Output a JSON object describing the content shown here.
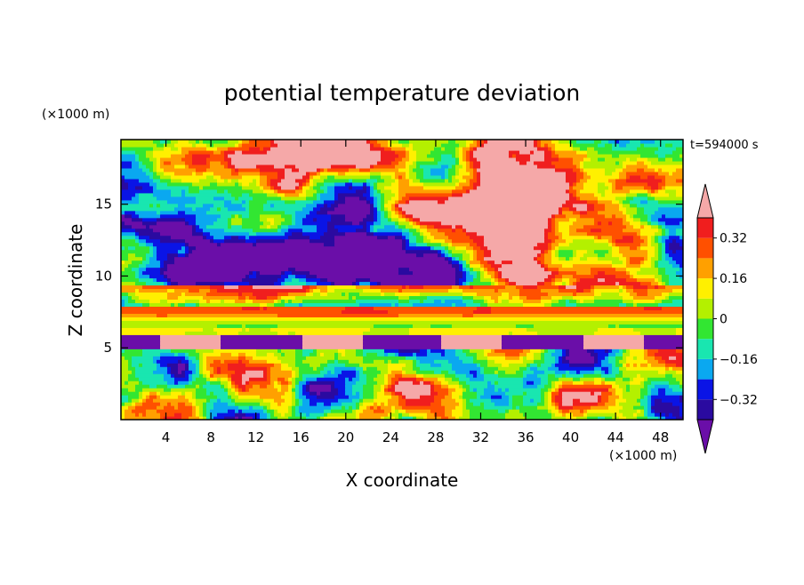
{
  "chart_data": {
    "type": "heatmap",
    "title": "potential temperature deviation",
    "xlabel": "X coordinate",
    "ylabel": "Z coordinate",
    "x_unit": "(×1000 m)",
    "y_unit": "(×1000 m)",
    "time_label": "t=594000 s",
    "xlim": [
      0,
      50
    ],
    "ylim": [
      0,
      19.5
    ],
    "x_ticks": [
      4,
      8,
      12,
      16,
      20,
      24,
      28,
      32,
      36,
      40,
      44,
      48
    ],
    "y_ticks": [
      5,
      10,
      15
    ],
    "colorbar": {
      "levels": [
        -0.4,
        -0.32,
        -0.24,
        -0.16,
        -0.08,
        0,
        0.08,
        0.16,
        0.24,
        0.32,
        0.4
      ],
      "tick_values": [
        -0.32,
        -0.16,
        0,
        0.16,
        0.32
      ],
      "tick_labels": [
        "−0.32",
        "−0.16",
        "0",
        "0.16",
        "0.32"
      ],
      "colors": [
        "#6a0ea8",
        "#2a0aa0",
        "#0a14e6",
        "#0aa8f0",
        "#19e6b0",
        "#32e632",
        "#b4f000",
        "#fff000",
        "#ffa000",
        "#ff5000",
        "#f01e1e",
        "#f5a8a8"
      ],
      "extend": "both"
    },
    "grid": false
  }
}
